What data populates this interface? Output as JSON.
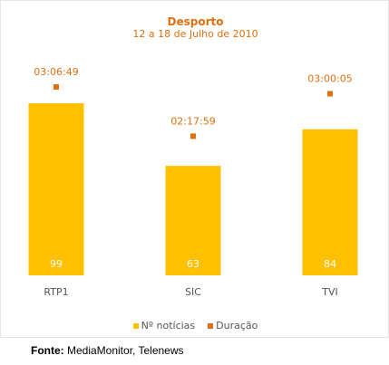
{
  "chart_data": {
    "type": "bar",
    "title": "Desporto",
    "subtitle": "12 a 18 de Julho de 2010",
    "categories": [
      "RTP1",
      "SIC",
      "TVI"
    ],
    "series": [
      {
        "name": "Nº notícias",
        "values": [
          99,
          63,
          84
        ],
        "color": "#ffc000"
      },
      {
        "name": "Duração",
        "values": [
          "03:06:49",
          "02:17:59",
          "03:00:05"
        ],
        "seconds": [
          11209,
          8279,
          10805
        ],
        "color": "#e06f10"
      }
    ],
    "bar_label_color": "#ffffff",
    "duration_label_color": "#e06f10",
    "category_label_color": "#555555",
    "legend_position": "bottom",
    "grid": false
  },
  "legend": {
    "items": [
      {
        "label": "Nº notícias",
        "color": "#ffc000"
      },
      {
        "label": "Duração",
        "color": "#e06f10"
      }
    ]
  },
  "source": {
    "label": "Fonte:",
    "text": " MediaMonitor, Telenews"
  }
}
